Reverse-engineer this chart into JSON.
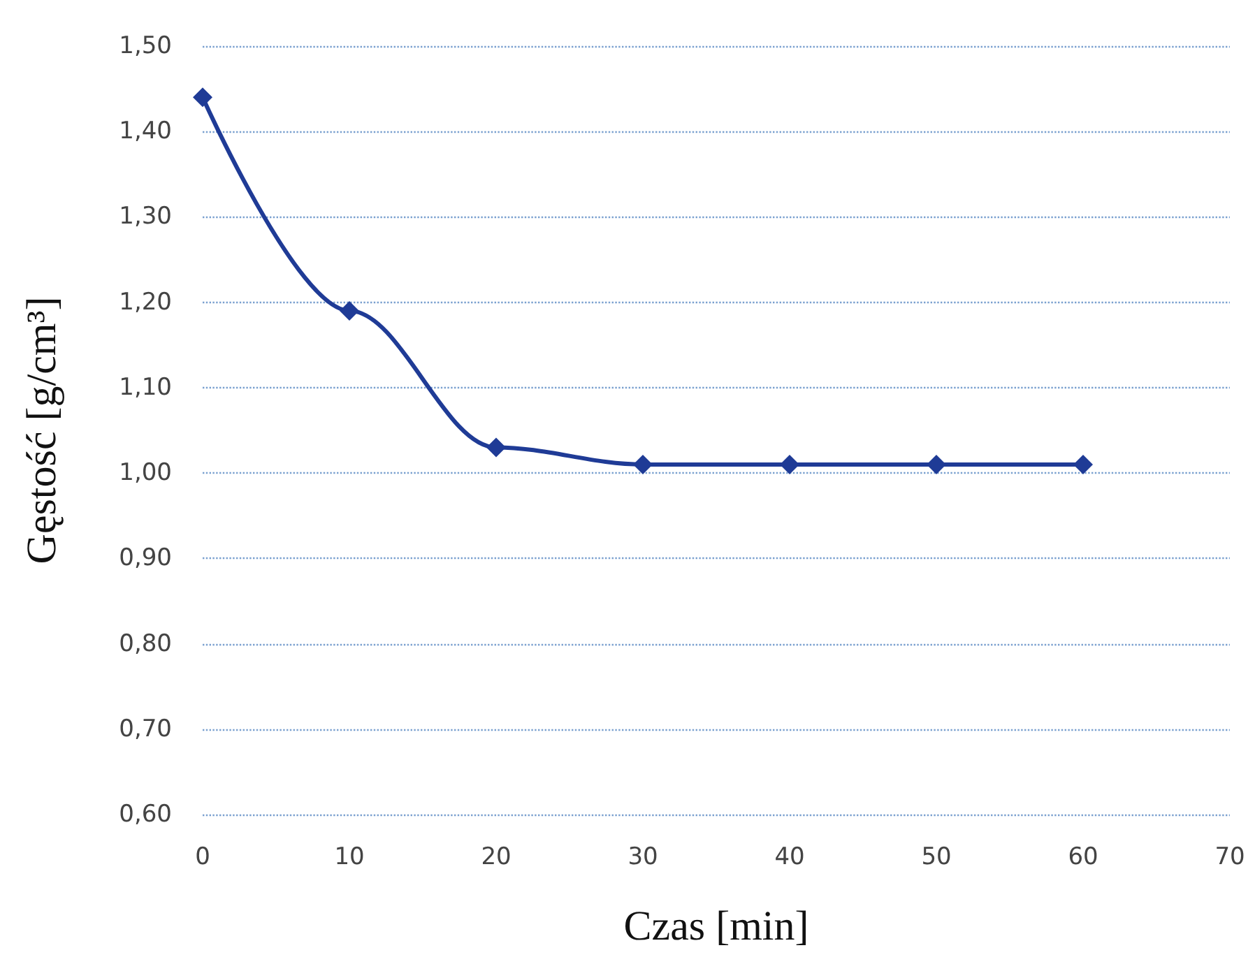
{
  "chart_data": {
    "type": "line",
    "xlabel": "Czas [min]",
    "ylabel": "Gęstość [g/cm³]",
    "x": [
      0,
      10,
      20,
      30,
      40,
      50,
      60
    ],
    "series": [
      {
        "color": "#1f3b96",
        "values": [
          1.44,
          1.19,
          1.03,
          1.01,
          1.01,
          1.01,
          1.01
        ]
      }
    ],
    "xlim": [
      0,
      70
    ],
    "xticks": [
      0,
      10,
      20,
      30,
      40,
      50,
      60,
      70
    ],
    "ylim": [
      0.6,
      1.5
    ],
    "yticks": [
      {
        "value": 0.6,
        "label": "0,60"
      },
      {
        "value": 0.7,
        "label": "0,70"
      },
      {
        "value": 0.8,
        "label": "0,80"
      },
      {
        "value": 0.9,
        "label": "0,90"
      },
      {
        "value": 1.0,
        "label": "1,00"
      },
      {
        "value": 1.1,
        "label": "1,10"
      },
      {
        "value": 1.2,
        "label": "1,20"
      },
      {
        "value": 1.3,
        "label": "1,30"
      },
      {
        "value": 1.4,
        "label": "1,40"
      },
      {
        "value": 1.5,
        "label": "1,50"
      }
    ],
    "grid": "y",
    "marker": "diamond",
    "line_style": "solid"
  }
}
